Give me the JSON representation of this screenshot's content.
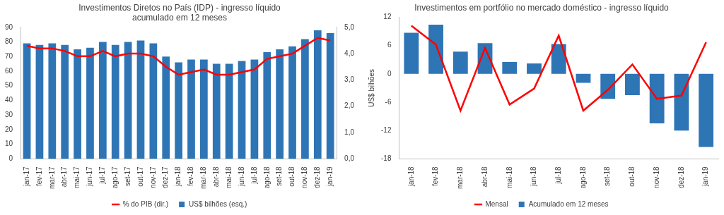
{
  "chart_data": [
    {
      "type": "bar",
      "title": "Investimentos Diretos no País (IDP) - ingresso líquido\nacumulado em 12 meses",
      "categories": [
        "jan-17",
        "fev-17",
        "mar-17",
        "abr-17",
        "mai-17",
        "jun-17",
        "jul-17",
        "ago-17",
        "set-17",
        "out-17",
        "nov-17",
        "dez-17",
        "jan-18",
        "fev-18",
        "mar-18",
        "abr-18",
        "mai-18",
        "jun-18",
        "jul-18",
        "ago-18",
        "set-18",
        "out-18",
        "nov-18",
        "dez-18",
        "jan-19"
      ],
      "series": [
        {
          "name": "US$ bilhões (esq.)",
          "type": "bar",
          "color": "#2e75b6",
          "values": [
            79,
            78,
            79,
            78,
            75,
            76,
            80,
            78,
            80,
            81,
            79,
            70,
            66,
            68,
            68,
            65,
            65,
            67,
            68,
            73,
            75,
            77,
            82,
            88,
            86
          ]
        },
        {
          "name": "% do PIB (dir.)",
          "type": "line",
          "color": "#ff0000",
          "axis": "y2",
          "values": [
            4.3,
            4.2,
            4.2,
            4.1,
            3.9,
            3.9,
            4.1,
            3.9,
            4.0,
            4.0,
            3.9,
            3.5,
            3.2,
            3.3,
            3.4,
            3.2,
            3.2,
            3.3,
            3.4,
            3.8,
            3.9,
            4.0,
            4.3,
            4.6,
            4.5
          ]
        }
      ],
      "ylim": [
        0,
        90
      ],
      "yticks": [
        0,
        10,
        20,
        30,
        40,
        50,
        60,
        70,
        80,
        90
      ],
      "y2lim": [
        0,
        5
      ],
      "y2ticks": [
        {
          "value": 0,
          "label": "0,0"
        },
        {
          "value": 1,
          "label": "1,0"
        },
        {
          "value": 2,
          "label": "2,0"
        },
        {
          "value": 3,
          "label": "3,0"
        },
        {
          "value": 4,
          "label": "4,0"
        },
        {
          "value": 5,
          "label": "5,0"
        }
      ],
      "grid": false,
      "legend": "bottom"
    },
    {
      "type": "bar",
      "title": "Investimentos em portfólio no mercado doméstico - ingresso líquido",
      "ylabel": "US$ bilhões",
      "categories": [
        "jan-18",
        "fev-18",
        "mar-18",
        "abr-18",
        "mai-18",
        "jun-18",
        "jul-18",
        "ago-18",
        "set-18",
        "out-18",
        "nov-18",
        "dez-18",
        "jan-19"
      ],
      "series": [
        {
          "name": "Acumulado em 12 meses",
          "type": "bar",
          "color": "#2e75b6",
          "values": [
            8.7,
            10.4,
            4.7,
            6.5,
            2.5,
            2.2,
            6.3,
            -1.9,
            -5.3,
            -4.5,
            -10.5,
            -12.0,
            -15.5
          ]
        },
        {
          "name": "Mensal",
          "type": "line",
          "color": "#ff0000",
          "values": [
            10.2,
            6.2,
            -7.8,
            5.5,
            -6.5,
            -3.1,
            8.1,
            -7.8,
            -3.4,
            2.0,
            -5.3,
            -4.6,
            6.7
          ]
        }
      ],
      "ylim": [
        -18,
        12
      ],
      "yticks": [
        -18,
        -12,
        -6,
        0,
        6,
        12
      ],
      "grid": false,
      "legend": "bottom"
    }
  ]
}
